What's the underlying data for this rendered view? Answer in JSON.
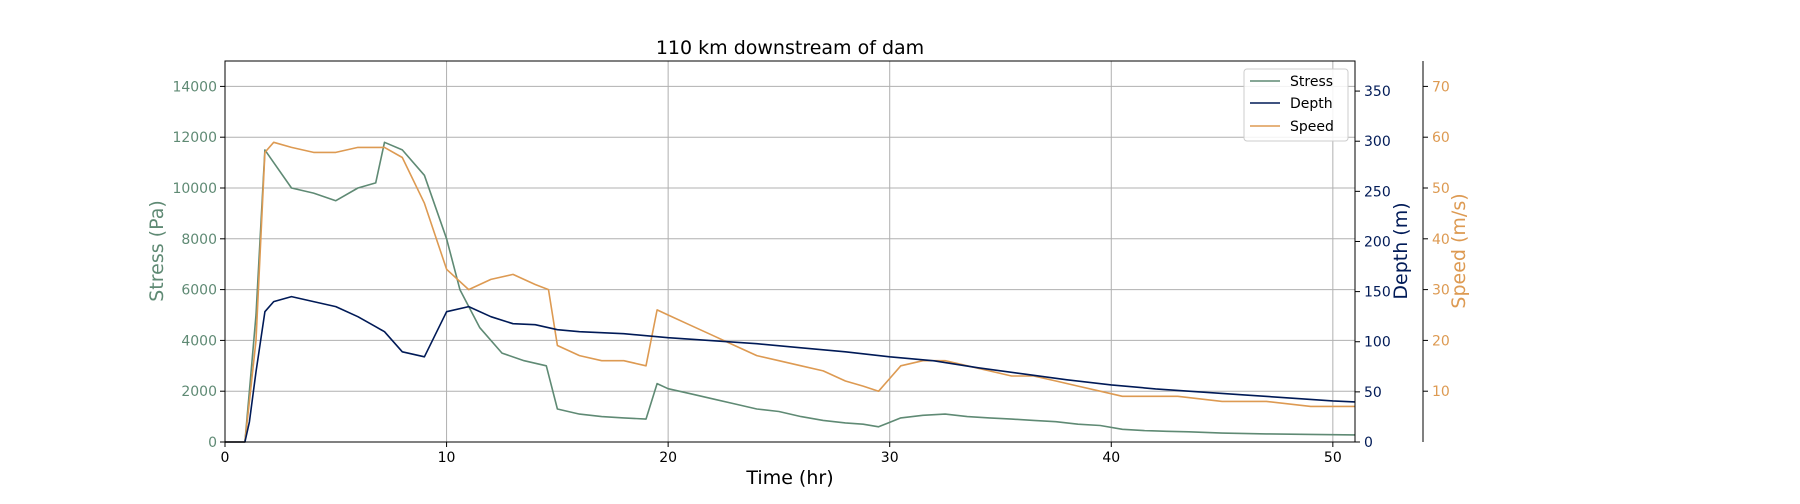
{
  "chart_data": {
    "type": "line",
    "title": "110 km downstream of dam",
    "xlabel": "Time (hr)",
    "xlim": [
      0,
      51
    ],
    "xticks": [
      0,
      10,
      20,
      30,
      40,
      50
    ],
    "grid": true,
    "legend_position": "top-right",
    "axes": {
      "stress": {
        "label": "Stress (Pa)",
        "color": "#5f8a74",
        "ylim": [
          0,
          15000
        ],
        "ticks": [
          0,
          2000,
          4000,
          6000,
          8000,
          10000,
          12000,
          14000
        ],
        "side": "left"
      },
      "depth": {
        "label": "Depth (m)",
        "color": "#001a57",
        "ylim": [
          0,
          380
        ],
        "ticks": [
          0,
          50,
          100,
          150,
          200,
          250,
          300,
          350
        ],
        "side": "right"
      },
      "speed": {
        "label": "Speed (m/s)",
        "color": "#dd9a52",
        "ylim": [
          0,
          75
        ],
        "ticks": [
          10,
          20,
          30,
          40,
          50,
          60,
          70
        ],
        "side": "right-outer"
      }
    },
    "series": [
      {
        "name": "Stress",
        "axis": "stress",
        "color": "#5f8a74",
        "x": [
          0,
          0.9,
          1.1,
          1.4,
          1.8,
          2.2,
          3,
          4,
          5,
          6,
          6.8,
          7.2,
          8,
          9,
          10,
          10.6,
          11.5,
          12.5,
          13.5,
          14.5,
          15,
          16,
          17,
          18,
          19,
          19.5,
          20,
          21,
          22,
          23,
          24,
          25,
          26,
          27,
          28,
          28.8,
          29.5,
          30.5,
          31.5,
          32.5,
          33.5,
          34.5,
          35.5,
          36.5,
          37.5,
          38.5,
          39.5,
          40.5,
          41.5,
          42.5,
          43.5,
          45,
          47,
          49,
          51
        ],
        "y": [
          0,
          0,
          2000,
          5000,
          11500,
          11000,
          10000,
          9800,
          9500,
          10000,
          10200,
          11800,
          11500,
          10500,
          8000,
          6000,
          4500,
          3500,
          3200,
          3000,
          1300,
          1100,
          1000,
          950,
          900,
          2300,
          2100,
          1900,
          1700,
          1500,
          1300,
          1200,
          1000,
          850,
          750,
          700,
          600,
          950,
          1050,
          1100,
          1000,
          950,
          900,
          850,
          800,
          700,
          650,
          500,
          450,
          420,
          400,
          350,
          320,
          300,
          280
        ]
      },
      {
        "name": "Depth",
        "axis": "depth",
        "color": "#001a57",
        "x": [
          0,
          0.9,
          1.1,
          1.4,
          1.8,
          2.2,
          3,
          4,
          5,
          6,
          6.8,
          7.2,
          8,
          9,
          10,
          11,
          12,
          13,
          14,
          15,
          16,
          18,
          20,
          22,
          24,
          26,
          28,
          30,
          32,
          34,
          36,
          38,
          40,
          42,
          44,
          46,
          48,
          50,
          51
        ],
        "y": [
          0,
          0,
          20,
          70,
          130,
          140,
          145,
          140,
          135,
          125,
          115,
          110,
          90,
          85,
          130,
          135,
          125,
          118,
          117,
          112,
          110,
          108,
          104,
          101,
          98,
          94,
          90,
          85,
          81,
          74,
          68,
          62,
          57,
          53,
          50,
          47,
          44,
          41,
          40
        ]
      },
      {
        "name": "Speed",
        "axis": "speed",
        "color": "#dd9a52",
        "x": [
          0,
          0.9,
          1.1,
          1.4,
          1.8,
          2.2,
          3,
          4,
          5,
          6,
          6.8,
          7.2,
          8,
          9,
          10,
          11,
          12,
          13,
          14,
          14.6,
          15,
          16,
          17,
          18,
          19,
          19.5,
          20,
          21,
          22,
          23,
          24,
          25,
          26,
          27,
          28,
          28.8,
          29.5,
          30.5,
          31.5,
          32.5,
          33.5,
          34.5,
          35.5,
          36.5,
          37.5,
          38.5,
          39.5,
          40.5,
          41.5,
          43,
          45,
          47,
          49,
          51
        ],
        "y": [
          0,
          0,
          8,
          20,
          57,
          59,
          58,
          57,
          57,
          58,
          58,
          58,
          56,
          47,
          34,
          30,
          32,
          33,
          31,
          30,
          19,
          17,
          16,
          16,
          15,
          26,
          25,
          23,
          21,
          19,
          17,
          16,
          15,
          14,
          12,
          11,
          10,
          15,
          16,
          16,
          15,
          14,
          13,
          13,
          12,
          11,
          10,
          9,
          9,
          9,
          8,
          8,
          7,
          7
        ]
      }
    ],
    "legend": [
      {
        "name": "Stress",
        "color": "#5f8a74"
      },
      {
        "name": "Depth",
        "color": "#001a57"
      },
      {
        "name": "Speed",
        "color": "#dd9a52"
      }
    ]
  }
}
